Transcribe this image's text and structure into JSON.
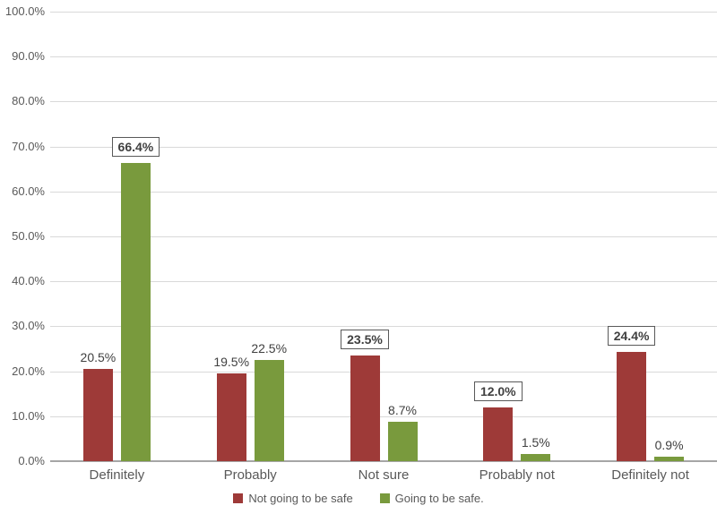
{
  "chart_data": {
    "type": "bar",
    "title": "",
    "xlabel": "",
    "ylabel": "",
    "categories": [
      "Definitely",
      "Probably",
      "Not sure",
      "Probably not",
      "Definitely not"
    ],
    "series": [
      {
        "name": "Not going to be safe",
        "color": "#9E3A38",
        "values": [
          20.5,
          19.5,
          23.5,
          12.0,
          24.4
        ],
        "labels": [
          "20.5%",
          "19.5%",
          "23.5%",
          "12.0%",
          "24.4%"
        ],
        "boxed_labels": [
          false,
          false,
          true,
          true,
          true
        ]
      },
      {
        "name": "Going to be safe.",
        "color": "#799A3D",
        "values": [
          66.4,
          22.5,
          8.7,
          1.5,
          0.9
        ],
        "labels": [
          "66.4%",
          "22.5%",
          "8.7%",
          "1.5%",
          "0.9%"
        ],
        "boxed_labels": [
          true,
          false,
          false,
          false,
          false
        ]
      }
    ],
    "ylim": [
      0,
      100
    ],
    "ytick_labels": [
      "0.0%",
      "10.0%",
      "20.0%",
      "30.0%",
      "40.0%",
      "50.0%",
      "60.0%",
      "70.0%",
      "80.0%",
      "90.0%",
      "100.0%"
    ],
    "grid": true,
    "legend_position": "bottom",
    "colors": {
      "background": "#FFFFFF",
      "gridline": "#D9D9D9",
      "axis_line": "#A6A6A6",
      "tick_label": "#595959",
      "category_label": "#595959",
      "data_label": "#404040",
      "label_box_border": "#595959",
      "legend_label": "#595959"
    }
  }
}
